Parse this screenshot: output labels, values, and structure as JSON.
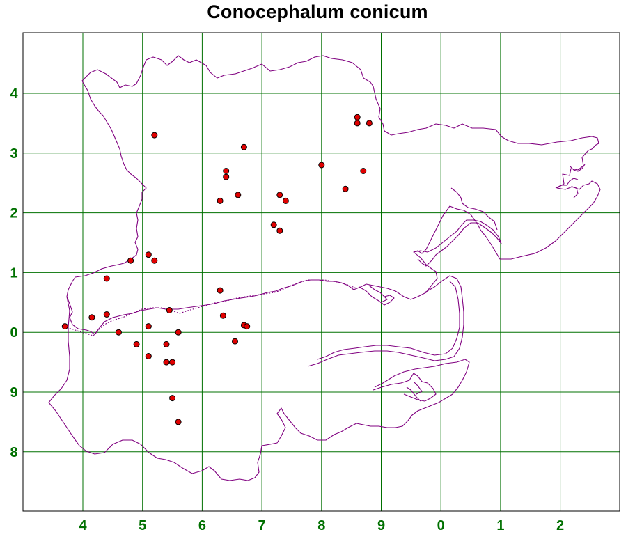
{
  "title": "Conocephalum conicum",
  "colors": {
    "grid": "#007000",
    "tick_label": "#007000",
    "coastline": "#800080",
    "record_fill": "#e00000",
    "record_stroke": "#000000",
    "frame": "#000000",
    "background": "#ffffff"
  },
  "grid": {
    "x_ticks": [
      "4",
      "5",
      "6",
      "7",
      "8",
      "9",
      "0",
      "1",
      "2"
    ],
    "y_ticks": [
      "4",
      "3",
      "2",
      "1",
      "0",
      "9",
      "8"
    ]
  },
  "chart_data": {
    "type": "scatter",
    "title": "Conocephalum conicum",
    "x_ticks": [
      "4",
      "5",
      "6",
      "7",
      "8",
      "9",
      "0",
      "1",
      "2"
    ],
    "y_ticks": [
      "4",
      "3",
      "2",
      "1",
      "0",
      "9",
      "8"
    ],
    "grid": true,
    "points": [
      {
        "x": 5.2,
        "y": 3.3
      },
      {
        "x": 6.7,
        "y": 3.1
      },
      {
        "x": 8.6,
        "y": 3.6
      },
      {
        "x": 8.6,
        "y": 3.5
      },
      {
        "x": 8.8,
        "y": 3.5
      },
      {
        "x": 8.0,
        "y": 2.8
      },
      {
        "x": 8.7,
        "y": 2.7
      },
      {
        "x": 6.4,
        "y": 2.7
      },
      {
        "x": 6.4,
        "y": 2.6
      },
      {
        "x": 8.4,
        "y": 2.4
      },
      {
        "x": 6.6,
        "y": 2.3
      },
      {
        "x": 7.3,
        "y": 2.3
      },
      {
        "x": 6.3,
        "y": 2.2
      },
      {
        "x": 7.4,
        "y": 2.2
      },
      {
        "x": 7.2,
        "y": 1.8
      },
      {
        "x": 7.3,
        "y": 1.7
      },
      {
        "x": 5.1,
        "y": 1.3
      },
      {
        "x": 4.8,
        "y": 1.2
      },
      {
        "x": 5.2,
        "y": 1.2
      },
      {
        "x": 4.4,
        "y": 0.9
      },
      {
        "x": 6.3,
        "y": 0.7
      },
      {
        "x": 5.45,
        "y": 0.37
      },
      {
        "x": 4.4,
        "y": 0.3
      },
      {
        "x": 4.15,
        "y": 0.25
      },
      {
        "x": 6.35,
        "y": 0.28
      },
      {
        "x": 3.7,
        "y": 0.1
      },
      {
        "x": 5.1,
        "y": 0.1
      },
      {
        "x": 6.7,
        "y": 0.12
      },
      {
        "x": 6.75,
        "y": 0.1
      },
      {
        "x": 4.6,
        "y": 0.0
      },
      {
        "x": 5.6,
        "y": 0.0
      },
      {
        "x": 6.55,
        "y": -0.15
      },
      {
        "x": 4.9,
        "y": -0.2
      },
      {
        "x": 5.4,
        "y": -0.2
      },
      {
        "x": 5.1,
        "y": -0.4
      },
      {
        "x": 5.4,
        "y": -0.5
      },
      {
        "x": 5.5,
        "y": -0.5
      },
      {
        "x": 5.5,
        "y": -1.1
      },
      {
        "x": 5.6,
        "y": -1.5
      }
    ]
  }
}
